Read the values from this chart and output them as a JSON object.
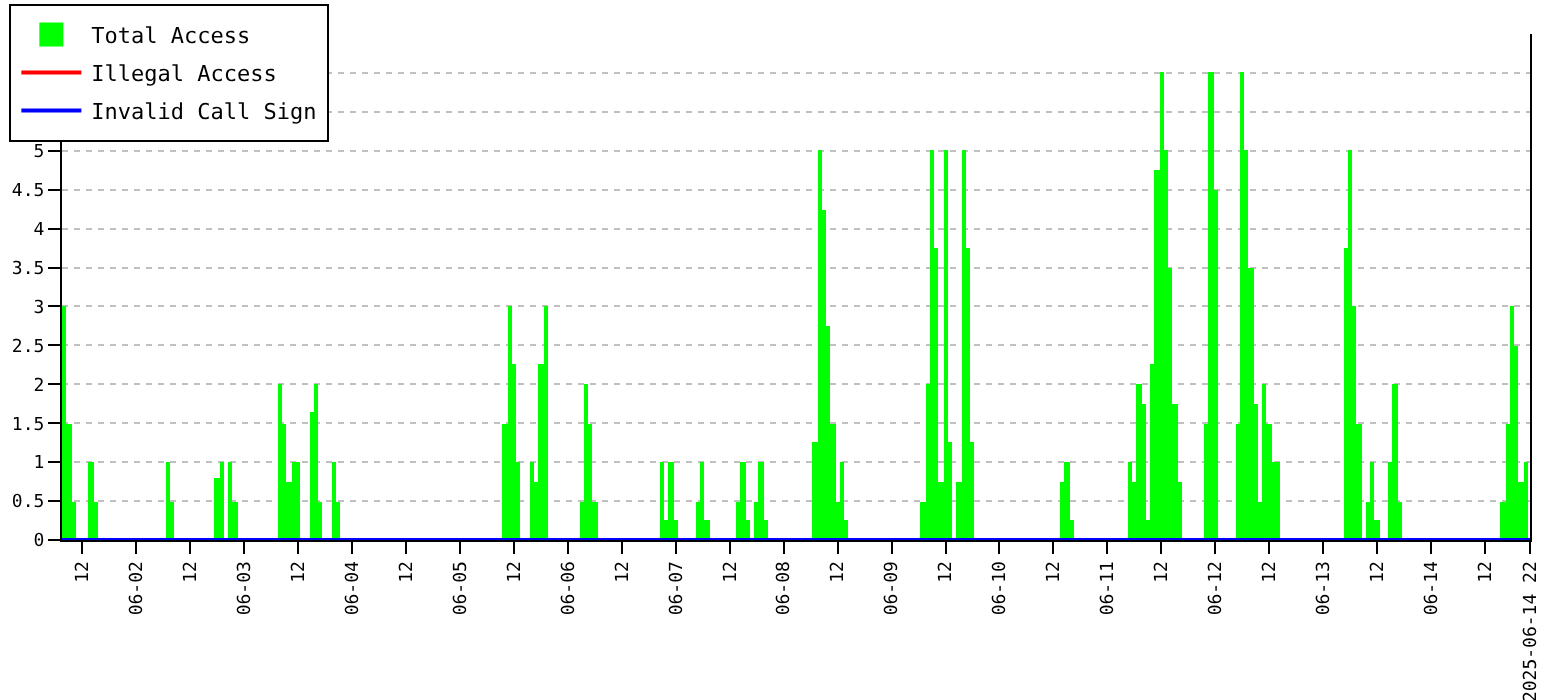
{
  "chart_data": {
    "type": "bar",
    "series": [
      {
        "name": "Total Access",
        "color": "#00ff00",
        "x": [
          "2025-06-01T08:00",
          "2025-06-01T09:00",
          "2025-06-01T10:00",
          "2025-06-01T14:00",
          "2025-06-01T15:00",
          "2025-06-02T07:00",
          "2025-06-02T08:00",
          "2025-06-02T18:00",
          "2025-06-02T19:00",
          "2025-06-02T21:00",
          "2025-06-02T22:00",
          "2025-06-03T08:00",
          "2025-06-03T09:00",
          "2025-06-03T10:00",
          "2025-06-03T11:00",
          "2025-06-03T12:00",
          "2025-06-03T15:00",
          "2025-06-03T16:00",
          "2025-06-03T17:00",
          "2025-06-03T20:00",
          "2025-06-03T21:00",
          "2025-06-05T10:00",
          "2025-06-05T11:00",
          "2025-06-05T12:00",
          "2025-06-05T13:00",
          "2025-06-05T16:00",
          "2025-06-05T17:00",
          "2025-06-05T18:00",
          "2025-06-05T19:00",
          "2025-06-06T03:00",
          "2025-06-06T04:00",
          "2025-06-06T05:00",
          "2025-06-06T06:00",
          "2025-06-06T21:00",
          "2025-06-06T22:00",
          "2025-06-06T23:00",
          "2025-06-07T00:00",
          "2025-06-07T05:00",
          "2025-06-07T06:00",
          "2025-06-07T07:00",
          "2025-06-07T14:00",
          "2025-06-07T15:00",
          "2025-06-07T16:00",
          "2025-06-07T18:00",
          "2025-06-07T19:00",
          "2025-06-07T20:00",
          "2025-06-08T07:00",
          "2025-06-08T08:00",
          "2025-06-08T09:00",
          "2025-06-08T10:00",
          "2025-06-08T11:00",
          "2025-06-08T12:00",
          "2025-06-08T13:00",
          "2025-06-08T14:00",
          "2025-06-09T07:00",
          "2025-06-09T08:00",
          "2025-06-09T09:00",
          "2025-06-09T10:00",
          "2025-06-09T11:00",
          "2025-06-09T12:00",
          "2025-06-09T13:00",
          "2025-06-09T15:00",
          "2025-06-09T16:00",
          "2025-06-09T17:00",
          "2025-06-09T18:00",
          "2025-06-10T14:00",
          "2025-06-10T15:00",
          "2025-06-10T16:00",
          "2025-06-11T05:00",
          "2025-06-11T06:00",
          "2025-06-11T07:00",
          "2025-06-11T08:00",
          "2025-06-11T09:00",
          "2025-06-11T10:00",
          "2025-06-11T11:00",
          "2025-06-11T12:00",
          "2025-06-11T13:00",
          "2025-06-11T14:00",
          "2025-06-11T15:00",
          "2025-06-11T16:00",
          "2025-06-11T22:00",
          "2025-06-11T23:00",
          "2025-06-12T00:00",
          "2025-06-12T05:00",
          "2025-06-12T06:00",
          "2025-06-12T07:00",
          "2025-06-12T08:00",
          "2025-06-12T09:00",
          "2025-06-12T10:00",
          "2025-06-12T11:00",
          "2025-06-12T12:00",
          "2025-06-12T13:00",
          "2025-06-12T14:00",
          "2025-06-13T05:00",
          "2025-06-13T06:00",
          "2025-06-13T07:00",
          "2025-06-13T08:00",
          "2025-06-13T10:00",
          "2025-06-13T11:00",
          "2025-06-13T12:00",
          "2025-06-13T15:00",
          "2025-06-13T16:00",
          "2025-06-13T17:00",
          "2025-06-14T16:00",
          "2025-06-14T17:00",
          "2025-06-14T18:00",
          "2025-06-14T19:00",
          "2025-06-14T20:00",
          "2025-06-14T21:00"
        ],
        "values": [
          3,
          1.5,
          0.5,
          1,
          0.5,
          1,
          0.5,
          0.8,
          1,
          1,
          0.5,
          2,
          1.5,
          0.75,
          1,
          1,
          1.65,
          2,
          0.5,
          1,
          0.5,
          1.5,
          3,
          2.25,
          1,
          1,
          0.75,
          2.25,
          3,
          0.5,
          2,
          1.5,
          0.5,
          1,
          0.25,
          1,
          0.25,
          0.5,
          1,
          0.25,
          0.5,
          1,
          0.25,
          0.5,
          1,
          0.25,
          1.25,
          5,
          4.25,
          2.75,
          1.5,
          0.5,
          1,
          0.25,
          0.5,
          2,
          5,
          3.75,
          0.75,
          5,
          1.25,
          0.75,
          5,
          3.75,
          1.25,
          0.75,
          1,
          0.25,
          1,
          0.75,
          2,
          1.75,
          0.25,
          2.25,
          4.75,
          6,
          5,
          3.5,
          1.75,
          0.75,
          1.5,
          6,
          4.5,
          1.5,
          6,
          5,
          3.5,
          1.75,
          0.5,
          2,
          1.5,
          1,
          1,
          3.75,
          5,
          3,
          1.5,
          0.5,
          1,
          0.25,
          1,
          2,
          0.5,
          0.5,
          1.5,
          3,
          2.5,
          0.75,
          1
        ]
      },
      {
        "name": "Illegal Access",
        "color": "#ff0000",
        "type": "line"
      },
      {
        "name": "Invalid Call Sign",
        "color": "#0000ff",
        "type": "line",
        "x": [
          "2025-06-01T07:30",
          "2025-06-14T22:00"
        ],
        "values": [
          0,
          0
        ]
      }
    ],
    "xlim": [
      "2025-06-01T07:30",
      "2025-06-14T22:00"
    ],
    "xticks": [
      {
        "value": "2025-06-01T12:00",
        "label": "12"
      },
      {
        "value": "2025-06-02",
        "label": "06-02"
      },
      {
        "value": "2025-06-02T12:00",
        "label": "12"
      },
      {
        "value": "2025-06-03",
        "label": "06-03"
      },
      {
        "value": "2025-06-03T12:00",
        "label": "12"
      },
      {
        "value": "2025-06-04",
        "label": "06-04"
      },
      {
        "value": "2025-06-04T12:00",
        "label": "12"
      },
      {
        "value": "2025-06-05",
        "label": "06-05"
      },
      {
        "value": "2025-06-05T12:00",
        "label": "12"
      },
      {
        "value": "2025-06-06",
        "label": "06-06"
      },
      {
        "value": "2025-06-06T12:00",
        "label": "12"
      },
      {
        "value": "2025-06-07",
        "label": "06-07"
      },
      {
        "value": "2025-06-07T12:00",
        "label": "12"
      },
      {
        "value": "2025-06-08",
        "label": "06-08"
      },
      {
        "value": "2025-06-08T12:00",
        "label": "12"
      },
      {
        "value": "2025-06-09",
        "label": "06-09"
      },
      {
        "value": "2025-06-09T12:00",
        "label": "12"
      },
      {
        "value": "2025-06-10",
        "label": "06-10"
      },
      {
        "value": "2025-06-10T12:00",
        "label": "12"
      },
      {
        "value": "2025-06-11",
        "label": "06-11"
      },
      {
        "value": "2025-06-11T12:00",
        "label": "12"
      },
      {
        "value": "2025-06-12",
        "label": "06-12"
      },
      {
        "value": "2025-06-12T12:00",
        "label": "12"
      },
      {
        "value": "2025-06-13",
        "label": "06-13"
      },
      {
        "value": "2025-06-13T12:00",
        "label": "12"
      },
      {
        "value": "2025-06-14",
        "label": "06-14"
      },
      {
        "value": "2025-06-14T12:00",
        "label": "12"
      },
      {
        "value": "2025-06-14T22:00",
        "label": "2025-06-14 22"
      }
    ],
    "ylim": [
      0,
      6.5
    ],
    "yticks": [
      0,
      0.5,
      1,
      1.5,
      2,
      2.5,
      3,
      3.5,
      4,
      4.5,
      5,
      {
        "value": 5.5,
        "label": null
      },
      {
        "value": 6,
        "label": null
      },
      {
        "value": 6.5,
        "label": null
      }
    ],
    "grid": "y",
    "legend": "top left"
  }
}
